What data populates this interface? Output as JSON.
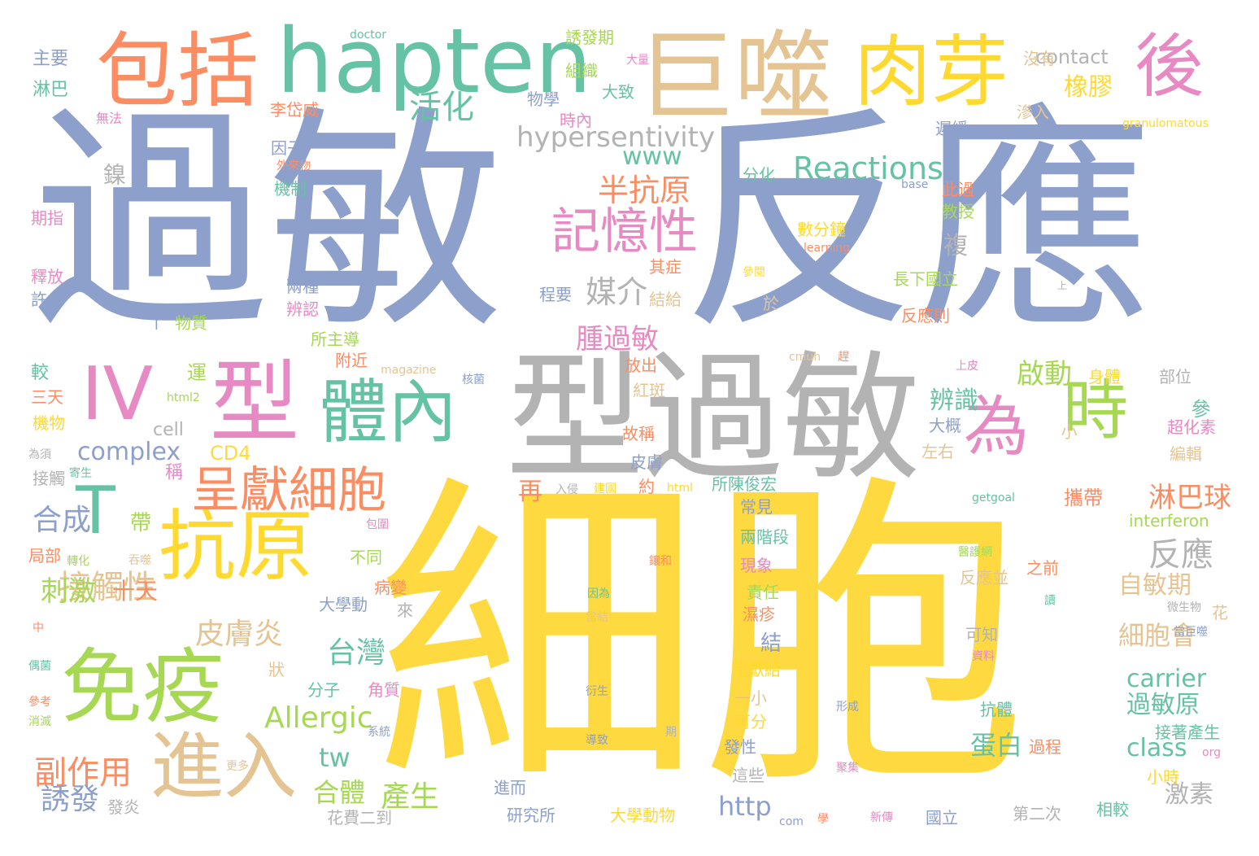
{
  "words": [
    {
      "text": "細胞",
      "color": "#fed93f"
    },
    {
      "text": "過敏",
      "color": "#8da0cb"
    },
    {
      "text": "反應",
      "color": "#8da0cb"
    },
    {
      "text": "型過敏",
      "color": "#b3b3b3"
    },
    {
      "text": "巨噬",
      "color": "#e5c494"
    },
    {
      "text": "hapten",
      "color": "#66c2a5"
    },
    {
      "text": "包括",
      "color": "#fc8d62"
    },
    {
      "text": "肉芽",
      "color": "#ffd92f"
    },
    {
      "text": "後",
      "color": "#e78ac3"
    },
    {
      "text": "型",
      "color": "#e78ac3"
    },
    {
      "text": "IV",
      "color": "#e78ac3"
    },
    {
      "text": "體內",
      "color": "#66c2a5"
    },
    {
      "text": "為",
      "color": "#e78ac3"
    },
    {
      "text": "時",
      "color": "#a6d854"
    },
    {
      "text": "T",
      "color": "#66c2a5"
    },
    {
      "text": "抗原",
      "color": "#ffd92f"
    },
    {
      "text": "免疫",
      "color": "#a6d854"
    },
    {
      "text": "進入",
      "color": "#e5c494"
    },
    {
      "text": "呈獻細胞",
      "color": "#fc8d62"
    },
    {
      "text": "記憶性",
      "color": "#e78ac3"
    },
    {
      "text": "Reactions",
      "color": "#66c2a5"
    },
    {
      "text": "hypersentivity",
      "color": "#b3b3b3"
    },
    {
      "text": "活化",
      "color": "#66c2a5"
    },
    {
      "text": "橡膠",
      "color": "#ffd92f"
    },
    {
      "text": "contact",
      "color": "#b3b3b3"
    },
    {
      "text": "半抗原",
      "color": "#fc8d62"
    },
    {
      "text": "www",
      "color": "#66c2a5"
    },
    {
      "text": "媒介",
      "color": "#b3b3b3"
    },
    {
      "text": "腫過敏",
      "color": "#e78ac3"
    },
    {
      "text": "啟動",
      "color": "#a6d854"
    },
    {
      "text": "辨識",
      "color": "#66c2a5"
    },
    {
      "text": "淋巴球",
      "color": "#fc8d62"
    },
    {
      "text": "反應",
      "color": "#b3b3b3"
    },
    {
      "text": "complex",
      "color": "#8da0cb"
    },
    {
      "text": "Allergic",
      "color": "#a6d854"
    },
    {
      "text": "接觸性",
      "color": "#e5c494"
    },
    {
      "text": "皮膚炎",
      "color": "#e5c494"
    },
    {
      "text": "刺激",
      "color": "#a6d854"
    },
    {
      "text": "十天",
      "color": "#fc8d62"
    },
    {
      "text": "台灣",
      "color": "#66c2a5"
    },
    {
      "text": "合成",
      "color": "#8da0cb"
    },
    {
      "text": "副作用",
      "color": "#fc8d62"
    },
    {
      "text": "誘發",
      "color": "#8da0cb"
    },
    {
      "text": "產生",
      "color": "#a6d854"
    },
    {
      "text": "合體",
      "color": "#a6d854"
    },
    {
      "text": "tw",
      "color": "#66c2a5"
    },
    {
      "text": "http",
      "color": "#8da0cb"
    },
    {
      "text": "carrier",
      "color": "#66c2a5"
    },
    {
      "text": "過敏原",
      "color": "#66c2a5"
    },
    {
      "text": "class",
      "color": "#66c2a5"
    },
    {
      "text": "蛋白",
      "color": "#66c2a5"
    },
    {
      "text": "激素",
      "color": "#b3b3b3"
    },
    {
      "text": "自敏期",
      "color": "#e5c494"
    },
    {
      "text": "細胞會",
      "color": "#e5c494"
    },
    {
      "text": "CD4",
      "color": "#fed93f"
    },
    {
      "text": "cell",
      "color": "#b3b3b3"
    },
    {
      "text": "再",
      "color": "#fc8d62"
    },
    {
      "text": "帶",
      "color": "#a6d854"
    },
    {
      "text": "主要",
      "color": "#8da0cb"
    },
    {
      "text": "淋巴",
      "color": "#66c2a5"
    },
    {
      "text": "doctor",
      "color": "#66c2a5"
    },
    {
      "text": "誘發期",
      "color": "#a6d854"
    },
    {
      "text": "組織",
      "color": "#a6d854"
    },
    {
      "text": "大量",
      "color": "#e78ac3"
    },
    {
      "text": "沒有",
      "color": "#e5c494"
    },
    {
      "text": "物學",
      "color": "#8da0cb"
    },
    {
      "text": "大致",
      "color": "#66c2a5"
    },
    {
      "text": "時內",
      "color": "#e78ac3"
    },
    {
      "text": "李岱威",
      "color": "#fc8d62"
    },
    {
      "text": "無法",
      "color": "#e78ac3"
    },
    {
      "text": "滲入",
      "color": "#e5c494"
    },
    {
      "text": "遲緩",
      "color": "#8da0cb"
    },
    {
      "text": "granulomatous",
      "color": "#ffd92f"
    },
    {
      "text": "因子",
      "color": "#8da0cb"
    },
    {
      "text": "外來物",
      "color": "#fc8d62"
    },
    {
      "text": "鎳",
      "color": "#b3b3b3"
    },
    {
      "text": "機制",
      "color": "#66c2a5"
    },
    {
      "text": "分化",
      "color": "#66c2a5"
    },
    {
      "text": "base",
      "color": "#8da0cb"
    },
    {
      "text": "此過",
      "color": "#fc8d62"
    },
    {
      "text": "教授",
      "color": "#a6d854"
    },
    {
      "text": "數分鐘",
      "color": "#ffd92f"
    },
    {
      "text": "learning",
      "color": "#fc8d62"
    },
    {
      "text": "複",
      "color": "#b3b3b3"
    },
    {
      "text": "期指",
      "color": "#e78ac3"
    },
    {
      "text": "釋放",
      "color": "#e78ac3"
    },
    {
      "text": "許多",
      "color": "#8da0cb"
    },
    {
      "text": "兩種",
      "color": "#8da0cb"
    },
    {
      "text": "辨認",
      "color": "#e78ac3"
    },
    {
      "text": "其症",
      "color": "#fc8d62"
    },
    {
      "text": "參閱",
      "color": "#ffd92f"
    },
    {
      "text": "長下國立",
      "color": "#a6d854"
    },
    {
      "text": "程要",
      "color": "#8da0cb"
    },
    {
      "text": "結給",
      "color": "#e5c494"
    },
    {
      "text": "於",
      "color": "#e5c494"
    },
    {
      "text": "上",
      "color": "#b3b3b3"
    },
    {
      "text": "物質",
      "color": "#a6d854"
    },
    {
      "text": "所主導",
      "color": "#a6d854"
    },
    {
      "text": "反應則",
      "color": "#fc8d62"
    },
    {
      "text": "附近",
      "color": "#fc8d62"
    },
    {
      "text": "放出",
      "color": "#fc8d62"
    },
    {
      "text": "magazine",
      "color": "#e5c494"
    },
    {
      "text": "cmuh",
      "color": "#e5c494"
    },
    {
      "text": "較",
      "color": "#66c2a5"
    },
    {
      "text": "運",
      "color": "#a6d854"
    },
    {
      "text": "核菌",
      "color": "#8da0cb"
    },
    {
      "text": "上皮",
      "color": "#e78ac3"
    },
    {
      "text": "身體",
      "color": "#ffd92f"
    },
    {
      "text": "部位",
      "color": "#b3b3b3"
    },
    {
      "text": "三天",
      "color": "#fc8d62"
    },
    {
      "text": "機物",
      "color": "#ffd92f"
    },
    {
      "text": "html2",
      "color": "#a6d854"
    },
    {
      "text": "紅斑",
      "color": "#e5c494"
    },
    {
      "text": "大概",
      "color": "#8da0cb"
    },
    {
      "text": "參",
      "color": "#66c2a5"
    },
    {
      "text": "故稱",
      "color": "#fc8d62"
    },
    {
      "text": "左右",
      "color": "#e5c494"
    },
    {
      "text": "小",
      "color": "#e5c494"
    },
    {
      "text": "超化素",
      "color": "#e78ac3"
    },
    {
      "text": "編輯",
      "color": "#e5c494"
    },
    {
      "text": "為須",
      "color": "#b3b3b3"
    },
    {
      "text": "接觸",
      "color": "#b3b3b3"
    },
    {
      "text": "寄生",
      "color": "#66c2a5"
    },
    {
      "text": "稱",
      "color": "#e78ac3"
    },
    {
      "text": "皮膚",
      "color": "#8da0cb"
    },
    {
      "text": "約",
      "color": "#fc8d62"
    },
    {
      "text": "入侵",
      "color": "#b3b3b3"
    },
    {
      "text": "建國",
      "color": "#ffd92f"
    },
    {
      "text": "html",
      "color": "#ffd92f"
    },
    {
      "text": "所陳俊宏",
      "color": "#66c2a5"
    },
    {
      "text": "getgoal",
      "color": "#66c2a5"
    },
    {
      "text": "攜帶",
      "color": "#fc8d62"
    },
    {
      "text": "interferon",
      "color": "#a6d854"
    },
    {
      "text": "常見",
      "color": "#8da0cb"
    },
    {
      "text": "包圍",
      "color": "#e78ac3"
    },
    {
      "text": "兩階段",
      "color": "#66c2a5"
    },
    {
      "text": "局部",
      "color": "#fc8d62"
    },
    {
      "text": "轉化",
      "color": "#a6d854"
    },
    {
      "text": "吞噬",
      "color": "#e5c494"
    },
    {
      "text": "不同",
      "color": "#a6d854"
    },
    {
      "text": "鑲和",
      "color": "#fc8d62"
    },
    {
      "text": "醫護網",
      "color": "#a6d854"
    },
    {
      "text": "現象",
      "color": "#e78ac3"
    },
    {
      "text": "責任",
      "color": "#a6d854"
    },
    {
      "text": "反應並",
      "color": "#e5c494"
    },
    {
      "text": "之前",
      "color": "#fc8d62"
    },
    {
      "text": "病變",
      "color": "#fc8d62"
    },
    {
      "text": "因為",
      "color": "#66c2a5"
    },
    {
      "text": "濕疹",
      "color": "#fc8d62"
    },
    {
      "text": "大學動",
      "color": "#8da0cb"
    },
    {
      "text": "來",
      "color": "#b3b3b3"
    },
    {
      "text": "當結",
      "color": "#e5c494"
    },
    {
      "text": "可知",
      "color": "#b3b3b3"
    },
    {
      "text": "讀",
      "color": "#66c2a5"
    },
    {
      "text": "微生物",
      "color": "#b3b3b3"
    },
    {
      "text": "花",
      "color": "#e5c494"
    },
    {
      "text": "當巨噬",
      "color": "#8da0cb"
    },
    {
      "text": "中",
      "color": "#fc8d62"
    },
    {
      "text": "資料",
      "color": "#e78ac3"
    },
    {
      "text": "結",
      "color": "#8da0cb"
    },
    {
      "text": "狀",
      "color": "#e5c494"
    },
    {
      "text": "偶菌",
      "color": "#66c2a5"
    },
    {
      "text": "分子",
      "color": "#66c2a5"
    },
    {
      "text": "角質",
      "color": "#e78ac3"
    },
    {
      "text": "呈獻給",
      "color": "#ffd92f"
    },
    {
      "text": "衍生",
      "color": "#8da0cb"
    },
    {
      "text": "一小",
      "color": "#e5c494"
    },
    {
      "text": "參考",
      "color": "#fc8d62"
    },
    {
      "text": "形成",
      "color": "#8da0cb"
    },
    {
      "text": "消滅",
      "color": "#a6d854"
    },
    {
      "text": "期",
      "color": "#b3b3b3"
    },
    {
      "text": "可分",
      "color": "#ffd92f"
    },
    {
      "text": "抗體",
      "color": "#66c2a5"
    },
    {
      "text": "系統",
      "color": "#8da0cb"
    },
    {
      "text": "導致",
      "color": "#8da0cb"
    },
    {
      "text": "發性",
      "color": "#8da0cb"
    },
    {
      "text": "接著產生",
      "color": "#66c2a5"
    },
    {
      "text": "org",
      "color": "#e78ac3"
    },
    {
      "text": "過程",
      "color": "#fc8d62"
    },
    {
      "text": "更多",
      "color": "#e5c494"
    },
    {
      "text": "聚集",
      "color": "#e78ac3"
    },
    {
      "text": "這些",
      "color": "#b3b3b3"
    },
    {
      "text": "小時",
      "color": "#ffd92f"
    },
    {
      "text": "發炎",
      "color": "#b3b3b3"
    },
    {
      "text": "進而",
      "color": "#8da0cb"
    },
    {
      "text": "第二次",
      "color": "#b3b3b3"
    },
    {
      "text": "相較",
      "color": "#66c2a5"
    },
    {
      "text": "研究所",
      "color": "#8da0cb"
    },
    {
      "text": "大學動物",
      "color": "#ffd92f"
    },
    {
      "text": "com",
      "color": "#8da0cb"
    },
    {
      "text": "學",
      "color": "#fc8d62"
    },
    {
      "text": "新傳",
      "color": "#e78ac3"
    },
    {
      "text": "國立",
      "color": "#8da0cb"
    },
    {
      "text": "花費二到",
      "color": "#b3b3b3"
    },
    {
      "text": "I",
      "color": "#8da0cb"
    },
    {
      "text": "趕",
      "color": "#fc8d62"
    }
  ]
}
